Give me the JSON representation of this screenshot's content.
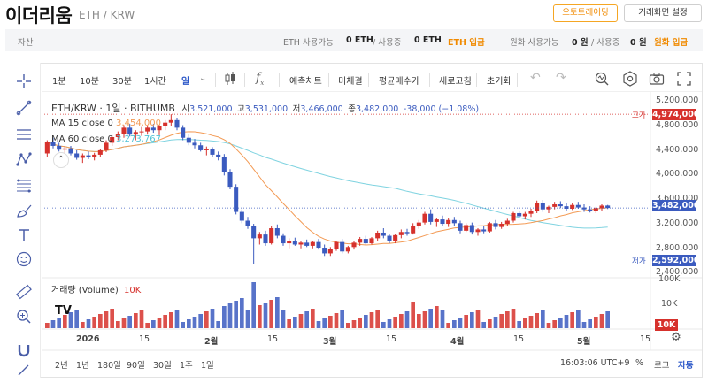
{
  "header": {
    "coin_name": "이더리움",
    "pair": "ETH / KRW",
    "auto_trade_button": "오토트레이딩",
    "settings_button": "거래화면 설정"
  },
  "asset_bar": {
    "label": "자산",
    "eth_available_label": "ETH 사용가능",
    "eth_available_value": "0 ETH",
    "eth_in_use_label": "/ 사용중",
    "eth_in_use_value": "0 ETH",
    "eth_deposit": "ETH 입금",
    "krw_available_label": "원화 사용가능",
    "krw_available_value": "0 원",
    "krw_in_use_label": "/ 사용중",
    "krw_in_use_value": "0 원",
    "krw_deposit": "원화 입금"
  },
  "toolbar": {
    "intervals": [
      "1분",
      "10분",
      "30분",
      "1시간",
      "일"
    ],
    "selected_interval": "일",
    "items": [
      "예측차트",
      "미체결",
      "평균매수가",
      "새로고침",
      "초기화"
    ],
    "fx_label": "f"
  },
  "legend": {
    "title": "ETH/KRW · 1일 · BITHUMB",
    "open_label": "시",
    "open": "3,521,000",
    "high_label": "고",
    "high": "3,531,000",
    "low_label": "저",
    "low": "3,466,000",
    "close_label": "종",
    "close": "3,482,000",
    "change": "-38,000 (−1.08%)",
    "ma15_label": "MA 15 close 0",
    "ma15_value": "3,454,000",
    "ma60_label": "MA 60 close 0",
    "ma60_value": "3,273,767",
    "volume_label": "거래량 (Volume)",
    "volume_value": "10K"
  },
  "price_scale": {
    "labels": [
      "5,200,000",
      "4,800,000",
      "4,400,000",
      "4,000,000",
      "3,600,000",
      "3,200,000",
      "2,800,000",
      "2,400,000"
    ],
    "high_marker_label": "고가",
    "high_marker_value": "4,974,000",
    "current_value": "3,482,000",
    "low_marker_label": "저가",
    "low_marker_value": "2,592,000",
    "volume_labels": [
      "100K",
      "10K"
    ],
    "volume_current": "10K"
  },
  "time_scale": {
    "labels": [
      "2026",
      "15",
      "2월",
      "15",
      "3월",
      "15",
      "4월",
      "15",
      "5월",
      "15"
    ]
  },
  "bottom": {
    "ranges": [
      "2년",
      "1년",
      "180일",
      "90일",
      "30일",
      "1주",
      "1일"
    ],
    "clock": "16:03:06 UTC+9",
    "percent": "%",
    "log": "로그",
    "auto": "자동"
  },
  "colors": {
    "up": "#d6312c",
    "down": "#3b5bbf",
    "ma15": "#f39a54",
    "ma60": "#7fd3e0",
    "accent": "#f08a00"
  },
  "chart_data": {
    "type": "candlestick",
    "series_name": "ETH/KRW",
    "y_range": [
      2400000,
      5300000
    ],
    "ohlc": [
      [
        4350000,
        4560000,
        4300000,
        4530000
      ],
      [
        4530000,
        4600000,
        4430000,
        4470000
      ],
      [
        4470000,
        4520000,
        4380000,
        4410000
      ],
      [
        4410000,
        4460000,
        4360000,
        4430000
      ],
      [
        4430000,
        4470000,
        4320000,
        4350000
      ],
      [
        4350000,
        4400000,
        4250000,
        4280000
      ],
      [
        4280000,
        4350000,
        4200000,
        4320000
      ],
      [
        4320000,
        4380000,
        4260000,
        4300000
      ],
      [
        4300000,
        4360000,
        4240000,
        4330000
      ],
      [
        4330000,
        4420000,
        4300000,
        4400000
      ],
      [
        4400000,
        4560000,
        4370000,
        4520000
      ],
      [
        4520000,
        4640000,
        4470000,
        4610000
      ],
      [
        4610000,
        4700000,
        4560000,
        4660000
      ],
      [
        4660000,
        4800000,
        4600000,
        4760000
      ],
      [
        4760000,
        4820000,
        4620000,
        4650000
      ],
      [
        4650000,
        4720000,
        4560000,
        4690000
      ],
      [
        4690000,
        4770000,
        4630000,
        4700000
      ],
      [
        4700000,
        4790000,
        4650000,
        4760000
      ],
      [
        4760000,
        4820000,
        4680000,
        4720000
      ],
      [
        4720000,
        4800000,
        4640000,
        4780000
      ],
      [
        4780000,
        4880000,
        4720000,
        4840000
      ],
      [
        4840000,
        4974000,
        4780000,
        4880000
      ],
      [
        4880000,
        4920000,
        4720000,
        4760000
      ],
      [
        4760000,
        4800000,
        4560000,
        4600000
      ],
      [
        4600000,
        4660000,
        4480000,
        4520000
      ],
      [
        4520000,
        4580000,
        4430000,
        4480000
      ],
      [
        4480000,
        4520000,
        4380000,
        4400000
      ],
      [
        4400000,
        4460000,
        4320000,
        4420000
      ],
      [
        4420000,
        4450000,
        4300000,
        4330000
      ],
      [
        4330000,
        4380000,
        4240000,
        4300000
      ],
      [
        4300000,
        4340000,
        4000000,
        4050000
      ],
      [
        4050000,
        4100000,
        3780000,
        3820000
      ],
      [
        3820000,
        3860000,
        3380000,
        3420000
      ],
      [
        3420000,
        3460000,
        3240000,
        3280000
      ],
      [
        3280000,
        3340000,
        3150000,
        3200000
      ],
      [
        3200000,
        3230000,
        2592000,
        3000000
      ],
      [
        3000000,
        3100000,
        2900000,
        3060000
      ],
      [
        3060000,
        3120000,
        2880000,
        2920000
      ],
      [
        2920000,
        3200000,
        2900000,
        3160000
      ],
      [
        3160000,
        3220000,
        3000000,
        3040000
      ],
      [
        3040000,
        3080000,
        2880000,
        2920000
      ],
      [
        2920000,
        3000000,
        2840000,
        2960000
      ],
      [
        2960000,
        3010000,
        2880000,
        2900000
      ],
      [
        2900000,
        2960000,
        2840000,
        2930000
      ],
      [
        2930000,
        2980000,
        2860000,
        2880000
      ],
      [
        2880000,
        2960000,
        2840000,
        2940000
      ],
      [
        2940000,
        2990000,
        2820000,
        2850000
      ],
      [
        2850000,
        2900000,
        2720000,
        2760000
      ],
      [
        2760000,
        2860000,
        2720000,
        2830000
      ],
      [
        2830000,
        2960000,
        2800000,
        2940000
      ],
      [
        2940000,
        2990000,
        2760000,
        2790000
      ],
      [
        2790000,
        2880000,
        2760000,
        2860000
      ],
      [
        2860000,
        2960000,
        2820000,
        2930000
      ],
      [
        2930000,
        3020000,
        2880000,
        2990000
      ],
      [
        2990000,
        3040000,
        2900000,
        2920000
      ],
      [
        2920000,
        3020000,
        2900000,
        3000000
      ],
      [
        3000000,
        3120000,
        2960000,
        3090000
      ],
      [
        3090000,
        3160000,
        3000000,
        3040000
      ],
      [
        3040000,
        3060000,
        2920000,
        2950000
      ],
      [
        2950000,
        3070000,
        2920000,
        3050000
      ],
      [
        3050000,
        3140000,
        3000000,
        3100000
      ],
      [
        3100000,
        3150000,
        3040000,
        3080000
      ],
      [
        3080000,
        3240000,
        3060000,
        3200000
      ],
      [
        3200000,
        3290000,
        3150000,
        3250000
      ],
      [
        3250000,
        3420000,
        3220000,
        3390000
      ],
      [
        3390000,
        3460000,
        3220000,
        3260000
      ],
      [
        3260000,
        3320000,
        3180000,
        3300000
      ],
      [
        3300000,
        3360000,
        3200000,
        3230000
      ],
      [
        3230000,
        3320000,
        3180000,
        3290000
      ],
      [
        3290000,
        3340000,
        3200000,
        3240000
      ],
      [
        3240000,
        3280000,
        3080000,
        3120000
      ],
      [
        3120000,
        3240000,
        3100000,
        3210000
      ],
      [
        3210000,
        3250000,
        3060000,
        3100000
      ],
      [
        3100000,
        3160000,
        3040000,
        3140000
      ],
      [
        3140000,
        3200000,
        3080000,
        3110000
      ],
      [
        3110000,
        3260000,
        3090000,
        3240000
      ],
      [
        3240000,
        3290000,
        3140000,
        3180000
      ],
      [
        3180000,
        3260000,
        3150000,
        3230000
      ],
      [
        3230000,
        3310000,
        3190000,
        3280000
      ],
      [
        3280000,
        3420000,
        3250000,
        3400000
      ],
      [
        3400000,
        3440000,
        3320000,
        3350000
      ],
      [
        3350000,
        3420000,
        3300000,
        3390000
      ],
      [
        3390000,
        3470000,
        3340000,
        3440000
      ],
      [
        3440000,
        3600000,
        3400000,
        3560000
      ],
      [
        3560000,
        3610000,
        3420000,
        3460000
      ],
      [
        3460000,
        3520000,
        3400000,
        3500000
      ],
      [
        3500000,
        3580000,
        3460000,
        3540000
      ],
      [
        3540000,
        3590000,
        3480000,
        3510000
      ],
      [
        3510000,
        3560000,
        3440000,
        3470000
      ],
      [
        3470000,
        3560000,
        3450000,
        3530000
      ],
      [
        3530000,
        3580000,
        3470000,
        3490000
      ],
      [
        3490000,
        3540000,
        3420000,
        3460000
      ],
      [
        3460000,
        3510000,
        3410000,
        3440000
      ],
      [
        3440000,
        3500000,
        3400000,
        3480000
      ],
      [
        3480000,
        3540000,
        3440000,
        3520000
      ],
      [
        3521000,
        3531000,
        3466000,
        3482000
      ]
    ],
    "volume_range": [
      0,
      100000
    ]
  }
}
